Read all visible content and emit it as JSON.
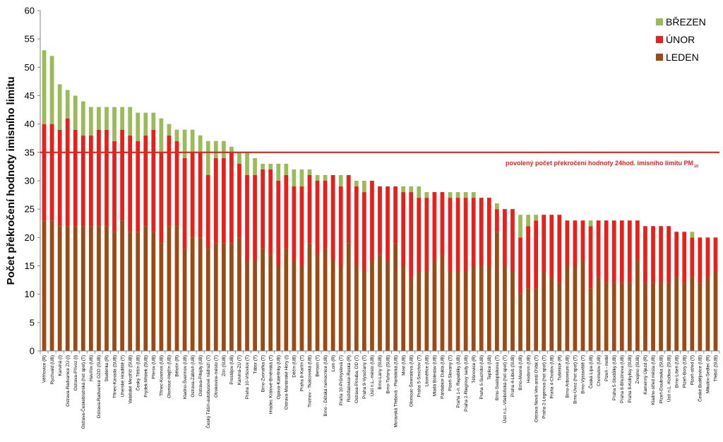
{
  "chart_data": {
    "type": "bar",
    "stacked": true,
    "title": "",
    "xlabel": "",
    "ylabel": "Počet překročení hodnoty imisního limitu",
    "ylim": [
      0,
      60
    ],
    "yticks": [
      0,
      5,
      10,
      15,
      20,
      25,
      30,
      35,
      40,
      45,
      50,
      55,
      60
    ],
    "grid": false,
    "legend_position": "top-right",
    "reference_line": {
      "value": 35,
      "label": "povolený počet překročení hodnoty 24hod. imisního limitu PM",
      "label_sub": "10",
      "color": "#e8201c"
    },
    "categories": [
      "Věřňovice (R)",
      "Rychvald (UB)",
      "Karviná (I)",
      "Ostrava-Radvanice ZÚ (I)",
      "Ostrava-Přívoz (I)",
      "Ostrava-Českobratrská (hot spot) (T)",
      "Havířov (UB)",
      "Ostrava-Radvanice OZO (SUB)",
      "Studénka (R)",
      "Třinec-Kanada (SUB)",
      "Uherské Hradiště (T)",
      "Valašské Meziříčí (SUB)",
      "Český Těšín (UB)",
      "Frýdek-Místek (SUB)",
      "Přerov (UB)",
      "Třinec-Kosmos (UB)",
      "Olomouc-Hejčín (UB)",
      "Bělotín (R)",
      "Kladno-Švermov (UB)",
      "Ostrava-Zábřeh (UB)",
      "Ostrava-Fifejdy (UB)",
      "Český Těšín-autobusové nádraží (T)",
      "Otrokovice-město (T)",
      "Zlín (SUB)",
      "Prostějov (UB)",
      "Karviná-ZÚ (T)",
      "Praha 10-Vršovice (T)",
      "Tábor (T)",
      "Brno-Zvonařka (T)",
      "Hradec Králové-Brněnská (T)",
      "Opava-Kateřinky (UB)",
      "Ostrava-Mariánské Hory (I)",
      "Děčín (UB)",
      "Praha 8-Karlín (T)",
      "Trutnov - Tkalcovská (UB)",
      "Beroun (T)",
      "Brno - Dětská nemocnice (UB)",
      "Lom (R)",
      "Praha 10-Průmyslová (T)",
      "Rožďalovice-Ruská (R)",
      "Ostrava-Poruba, DD (T)",
      "Praha 9-Vysočany (T)",
      "Ústí n.L.-město (UB)",
      "Brno-Lány (SUB)",
      "Brno-Tuřany (SUB)",
      "Moravská Třebová - Piaristická (UB)",
      "Most (UB)",
      "Olomouc-Šmeralova (UB)",
      "Praha 5-Smíchov (T)",
      "Litoměřice (UB)",
      "Mladá Boleslav (UB)",
      "Pardubice Dukla (UB)",
      "Plzeň-Slovany (T)",
      "Praha 1-n. Republiky (UB)",
      "Praha 2-Riegrovy sady (UB)",
      "Těšnovice (R)",
      "Praha 6-Suchdol (UB)",
      "Teplice (UB)",
      "Brno-Svatoplukova (T)",
      "Ústí n.L.-Všebořická (hot spot) (T)",
      "Praha 4-Libuš (SUB)",
      "Brno-Masná (UB)",
      "Hodonín (UB)",
      "Ostrava Nová Ves-areál OVak (T)",
      "Praha 2-Legerova (hot spot) (T)",
      "Praha 4-Chodov (UB)",
      "Tušimice (R)",
      "Brno-Arboretum (UB)",
      "Brno-Úvoz (hot spot) (T)",
      "Brno-Výstaviště (T)",
      "Česká Lípa (UB)",
      "Chomutov (UB)",
      "Plzeň - mobil",
      "Praha 5-Stodůlky (UB)",
      "Praha 8-Březinova (UB)",
      "Praha 8-Kobylisy (SUB)",
      "Znojmo (SUB)",
      "Kamenný Újezd (R)",
      "Kladno-střed města (UB)",
      "Plzeň-Doubravka (SUB)",
      "Ústí n.L.-Kočkov (SUB)",
      "Brno-Líšeň (UB)",
      "Plzeň-Bory (UB)",
      "Plzeň-střed (T)",
      "České Budějovice (UB)",
      "Mikulov-Sedlec (R)",
      "Třebíč (SUB)"
    ],
    "series": [
      {
        "name": "LEDEN",
        "color": "#9c4a12",
        "values": [
          23,
          23,
          22,
          22,
          22,
          22,
          22,
          22,
          22,
          21,
          23,
          21,
          21,
          22,
          21,
          19,
          22,
          22,
          18,
          20,
          20,
          18,
          19,
          19,
          19,
          20,
          16,
          16,
          18,
          17,
          15,
          18,
          16,
          15,
          19,
          17,
          18,
          16,
          15,
          19,
          15,
          14,
          16,
          17,
          16,
          19,
          15,
          13,
          14,
          14,
          16,
          17,
          14,
          14,
          14,
          15,
          15,
          15,
          21,
          15,
          14,
          10,
          11,
          11,
          14,
          13,
          12,
          15,
          15,
          16,
          11,
          13,
          12,
          12,
          12,
          12,
          16,
          12,
          12,
          12,
          12,
          13,
          12,
          13,
          12,
          13,
          14
        ]
      },
      {
        "name": "ÚNOR",
        "color": "#e8201c",
        "values": [
          17,
          17,
          17,
          19,
          17,
          16,
          16,
          17,
          17,
          16,
          16,
          17,
          16,
          16,
          18,
          16,
          16,
          15,
          16,
          15,
          15,
          13,
          15,
          15,
          16,
          13,
          15,
          15,
          14,
          15,
          15,
          13,
          13,
          14,
          12,
          13,
          12,
          15,
          14,
          12,
          14,
          14,
          14,
          12,
          13,
          10,
          13,
          15,
          13,
          13,
          12,
          11,
          13,
          13,
          13,
          12,
          12,
          12,
          4,
          10,
          11,
          10,
          11,
          12,
          10,
          11,
          12,
          8,
          8,
          7,
          11,
          10,
          11,
          11,
          11,
          11,
          7,
          10,
          10,
          10,
          10,
          8,
          9,
          7,
          8,
          7,
          6
        ]
      },
      {
        "name": "BŘEZEN",
        "color": "#9bbb59",
        "values": [
          13,
          12,
          8,
          5,
          6,
          6,
          5,
          4,
          4,
          6,
          4,
          5,
          5,
          4,
          3,
          6,
          2,
          2,
          5,
          4,
          3,
          6,
          3,
          3,
          1,
          2,
          4,
          3,
          1,
          1,
          3,
          2,
          3,
          3,
          1,
          1,
          1,
          0,
          2,
          0,
          1,
          2,
          0,
          0,
          0,
          0,
          1,
          1,
          2,
          1,
          0,
          0,
          1,
          1,
          1,
          1,
          0,
          0,
          1,
          0,
          0,
          4,
          2,
          1,
          0,
          0,
          0,
          0,
          0,
          0,
          1,
          0,
          0,
          0,
          0,
          0,
          0,
          0,
          0,
          0,
          0,
          0,
          0,
          1,
          0,
          0,
          0
        ]
      }
    ]
  }
}
